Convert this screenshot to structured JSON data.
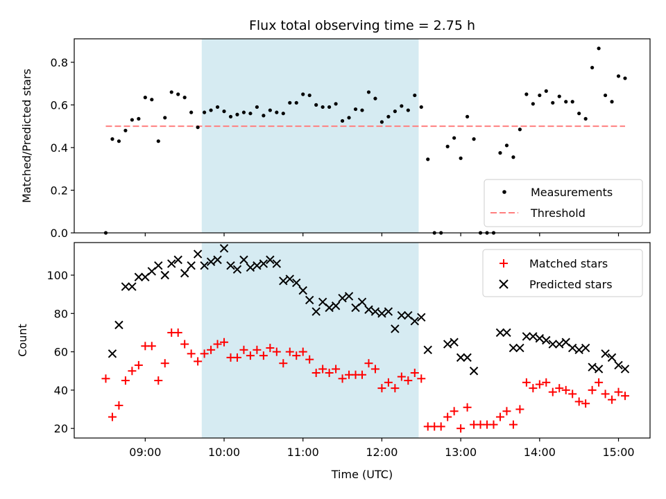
{
  "chart_data": [
    {
      "type": "scatter",
      "title": "Flux total observing time = 2.75 h",
      "ylabel": "Matched/Predicted stars",
      "xlabel": "",
      "xlim_hours": [
        8.1,
        15.4
      ],
      "ylim": [
        0,
        0.91
      ],
      "yticks": [
        "0.0",
        "0.2",
        "0.4",
        "0.6",
        "0.8"
      ],
      "ytick_values": [
        0.0,
        0.2,
        0.4,
        0.6,
        0.8
      ],
      "grid": false,
      "legend": {
        "placement": "lower-right",
        "entries": [
          "Measurements",
          "Threshold"
        ]
      },
      "shaded_interval": {
        "start": "09:43",
        "end": "12:28",
        "color": "#add8e6"
      },
      "threshold": {
        "name": "Threshold",
        "value": 0.5,
        "x_start": "08:30",
        "x_end": "15:05",
        "color": "#ff7f7f",
        "style": "dashed"
      },
      "series": [
        {
          "name": "Measurements",
          "marker": "dot",
          "color": "#000000",
          "x": [
            "08:30",
            "08:35",
            "08:40",
            "08:45",
            "08:50",
            "08:55",
            "09:00",
            "09:05",
            "09:10",
            "09:15",
            "09:20",
            "09:25",
            "09:30",
            "09:35",
            "09:40",
            "09:45",
            "09:50",
            "09:55",
            "10:00",
            "10:05",
            "10:10",
            "10:15",
            "10:20",
            "10:25",
            "10:30",
            "10:35",
            "10:40",
            "10:45",
            "10:50",
            "10:55",
            "11:00",
            "11:05",
            "11:10",
            "11:15",
            "11:20",
            "11:25",
            "11:30",
            "11:35",
            "11:40",
            "11:45",
            "11:50",
            "11:55",
            "12:00",
            "12:05",
            "12:10",
            "12:15",
            "12:20",
            "12:25",
            "12:30",
            "12:35",
            "12:40",
            "12:45",
            "12:50",
            "12:55",
            "13:00",
            "13:05",
            "13:10",
            "13:15",
            "13:20",
            "13:25",
            "13:30",
            "13:35",
            "13:40",
            "13:45",
            "13:50",
            "13:55",
            "14:00",
            "14:05",
            "14:10",
            "14:15",
            "14:20",
            "14:25",
            "14:30",
            "14:35",
            "14:40",
            "14:45",
            "14:50",
            "14:55",
            "15:00",
            "15:05"
          ],
          "y": [
            0.0,
            0.44,
            0.43,
            0.48,
            0.53,
            0.535,
            0.635,
            0.625,
            0.43,
            0.54,
            0.66,
            0.65,
            0.635,
            0.565,
            0.495,
            0.565,
            0.575,
            0.59,
            0.57,
            0.545,
            0.555,
            0.565,
            0.56,
            0.59,
            0.55,
            0.575,
            0.565,
            0.56,
            0.61,
            0.61,
            0.65,
            0.645,
            0.6,
            0.59,
            0.59,
            0.605,
            0.525,
            0.54,
            0.58,
            0.575,
            0.66,
            0.63,
            0.52,
            0.545,
            0.57,
            0.595,
            0.575,
            0.645,
            0.59,
            0.345,
            0.0,
            0.0,
            0.405,
            0.445,
            0.35,
            0.545,
            0.44,
            0.0,
            0.0,
            0.0,
            0.375,
            0.41,
            0.355,
            0.485,
            0.65,
            0.605,
            0.645,
            0.665,
            0.61,
            0.64,
            0.615,
            0.615,
            0.56,
            0.535,
            0.775,
            0.865,
            0.645,
            0.615,
            0.735,
            0.725
          ]
        }
      ]
    },
    {
      "type": "scatter",
      "title": "",
      "ylabel": "Count",
      "xlabel": "Time (UTC)",
      "xlim_hours": [
        8.1,
        15.4
      ],
      "ylim": [
        15,
        117
      ],
      "yticks": [
        "20",
        "40",
        "60",
        "80",
        "100"
      ],
      "ytick_values": [
        20,
        40,
        60,
        80,
        100
      ],
      "xticks": [
        "09:00",
        "10:00",
        "11:00",
        "12:00",
        "13:00",
        "14:00",
        "15:00"
      ],
      "grid": false,
      "legend": {
        "placement": "upper-right",
        "entries": [
          "Matched stars",
          "Predicted stars"
        ]
      },
      "shaded_interval": {
        "start": "09:43",
        "end": "12:28",
        "color": "#add8e6"
      },
      "series": [
        {
          "name": "Matched stars",
          "marker": "plus",
          "color": "#ff0000",
          "x": [
            "08:30",
            "08:35",
            "08:40",
            "08:45",
            "08:50",
            "08:55",
            "09:00",
            "09:05",
            "09:10",
            "09:15",
            "09:20",
            "09:25",
            "09:30",
            "09:35",
            "09:40",
            "09:45",
            "09:50",
            "09:55",
            "10:00",
            "10:05",
            "10:10",
            "10:15",
            "10:20",
            "10:25",
            "10:30",
            "10:35",
            "10:40",
            "10:45",
            "10:50",
            "10:55",
            "11:00",
            "11:05",
            "11:10",
            "11:15",
            "11:20",
            "11:25",
            "11:30",
            "11:35",
            "11:40",
            "11:45",
            "11:50",
            "11:55",
            "12:00",
            "12:05",
            "12:10",
            "12:15",
            "12:20",
            "12:25",
            "12:30",
            "12:35",
            "12:40",
            "12:45",
            "12:50",
            "12:55",
            "13:00",
            "13:05",
            "13:10",
            "13:15",
            "13:20",
            "13:25",
            "13:30",
            "13:35",
            "13:40",
            "13:45",
            "13:50",
            "13:55",
            "14:00",
            "14:05",
            "14:10",
            "14:15",
            "14:20",
            "14:25",
            "14:30",
            "14:35",
            "14:40",
            "14:45",
            "14:50",
            "14:55",
            "15:00",
            "15:05"
          ],
          "y": [
            46,
            26,
            32,
            45,
            50,
            53,
            63,
            63,
            45,
            54,
            70,
            70,
            64,
            59,
            55,
            59,
            61,
            64,
            65,
            57,
            57,
            61,
            58,
            61,
            58,
            62,
            60,
            54,
            60,
            58,
            60,
            56,
            49,
            51,
            49,
            51,
            46,
            48,
            48,
            48,
            54,
            51,
            41,
            44,
            41,
            47,
            45,
            49,
            46,
            21,
            21,
            21,
            26,
            29,
            20,
            31,
            22,
            22,
            22,
            22,
            26,
            29,
            22,
            30,
            44,
            41,
            43,
            44,
            39,
            41,
            40,
            38,
            34,
            33,
            40,
            44,
            38,
            35,
            39,
            37
          ]
        },
        {
          "name": "Predicted stars",
          "marker": "x",
          "color": "#000000",
          "x": [
            "08:35",
            "08:40",
            "08:45",
            "08:50",
            "08:55",
            "09:00",
            "09:05",
            "09:10",
            "09:15",
            "09:20",
            "09:25",
            "09:30",
            "09:35",
            "09:40",
            "09:45",
            "09:50",
            "09:55",
            "10:00",
            "10:05",
            "10:10",
            "10:15",
            "10:20",
            "10:25",
            "10:30",
            "10:35",
            "10:40",
            "10:45",
            "10:50",
            "10:55",
            "11:00",
            "11:05",
            "11:10",
            "11:15",
            "11:20",
            "11:25",
            "11:30",
            "11:35",
            "11:40",
            "11:45",
            "11:50",
            "11:55",
            "12:00",
            "12:05",
            "12:10",
            "12:15",
            "12:20",
            "12:25",
            "12:30",
            "12:35",
            "12:50",
            "12:55",
            "13:00",
            "13:05",
            "13:10",
            "13:30",
            "13:35",
            "13:40",
            "13:45",
            "13:50",
            "13:55",
            "14:00",
            "14:05",
            "14:10",
            "14:15",
            "14:20",
            "14:25",
            "14:30",
            "14:35",
            "14:40",
            "14:45",
            "14:50",
            "14:55",
            "15:00",
            "15:05"
          ],
          "y": [
            59,
            74,
            94,
            94,
            99,
            99,
            102,
            105,
            100,
            106,
            108,
            101,
            105,
            111,
            105,
            107,
            108,
            114,
            105,
            103,
            108,
            104,
            105,
            106,
            108,
            106,
            97,
            98,
            96,
            92,
            87,
            81,
            86,
            83,
            84,
            88,
            89,
            83,
            86,
            82,
            81,
            80,
            81,
            72,
            79,
            79,
            76,
            78,
            61,
            64,
            65,
            57,
            57,
            50,
            70,
            70,
            62,
            62,
            68,
            68,
            67,
            66,
            64,
            64,
            65,
            62,
            61,
            62,
            52,
            51,
            59,
            57,
            53,
            51
          ]
        }
      ]
    }
  ]
}
